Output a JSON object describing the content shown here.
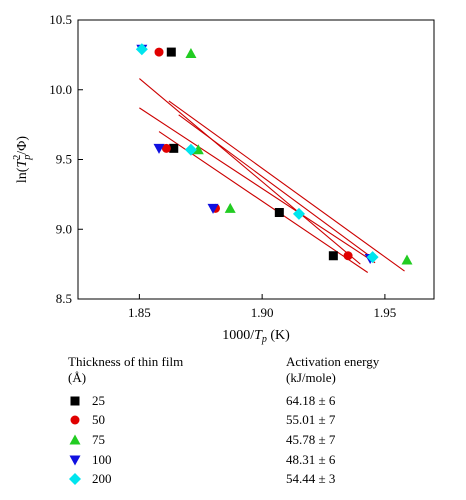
{
  "chart_data": {
    "type": "scatter",
    "xlabel": "1000/T_p (K)",
    "ylabel": "ln(T_p^2/Φ)",
    "xlim": [
      1.825,
      1.97
    ],
    "ylim": [
      8.5,
      10.5
    ],
    "xticks": [
      "1.85",
      "1.90",
      "1.95"
    ],
    "yticks": [
      "8.5",
      "9.0",
      "9.5",
      "10.0",
      "10.5"
    ],
    "grid": false,
    "series": [
      {
        "name": "25",
        "marker": "square",
        "color": "#000000",
        "points": [
          [
            1.863,
            10.27
          ],
          [
            1.864,
            9.58
          ],
          [
            1.907,
            9.12
          ],
          [
            1.929,
            8.81
          ]
        ],
        "fit": [
          [
            1.85,
            10.08
          ],
          [
            1.94,
            8.75
          ]
        ]
      },
      {
        "name": "50",
        "marker": "circle",
        "color": "#e00000",
        "points": [
          [
            1.858,
            10.27
          ],
          [
            1.861,
            9.58
          ],
          [
            1.881,
            9.15
          ],
          [
            1.935,
            8.81
          ]
        ],
        "fit": [
          [
            1.85,
            9.87
          ],
          [
            1.946,
            8.76
          ]
        ]
      },
      {
        "name": "75",
        "marker": "triangle",
        "color": "#22cc22",
        "points": [
          [
            1.871,
            10.26
          ],
          [
            1.874,
            9.57
          ],
          [
            1.887,
            9.15
          ],
          [
            1.959,
            8.78
          ]
        ],
        "fit": [
          [
            1.862,
            9.92
          ],
          [
            1.958,
            8.7
          ]
        ]
      },
      {
        "name": "100",
        "marker": "triangle-down",
        "color": "#1010e0",
        "points": [
          [
            1.851,
            10.29
          ],
          [
            1.858,
            9.58
          ],
          [
            1.88,
            9.15
          ],
          [
            1.944,
            8.79
          ]
        ],
        "fit": [
          [
            1.858,
            9.7
          ],
          [
            1.943,
            8.69
          ]
        ]
      },
      {
        "name": "200",
        "marker": "diamond",
        "color": "#00e5ee",
        "points": [
          [
            1.851,
            10.29
          ],
          [
            1.871,
            9.57
          ],
          [
            1.915,
            9.11
          ],
          [
            1.945,
            8.8
          ]
        ],
        "fit": [
          [
            1.866,
            9.82
          ],
          [
            1.946,
            8.78
          ]
        ]
      }
    ],
    "fit_line_color": "#cc0000"
  },
  "legend": {
    "header_thickness_line1": "Thickness of thin film",
    "header_thickness_line2": "(Å)",
    "header_energy_line1": "Activation energy",
    "header_energy_line2": "(kJ/mole)",
    "rows": [
      {
        "thickness": "25",
        "energy": "64.18 ± 6"
      },
      {
        "thickness": "50",
        "energy": "55.01 ± 7"
      },
      {
        "thickness": "75",
        "energy": "45.78 ± 7"
      },
      {
        "thickness": "100",
        "energy": "48.31 ± 6"
      },
      {
        "thickness": "200",
        "energy": "54.44 ± 3"
      }
    ]
  }
}
